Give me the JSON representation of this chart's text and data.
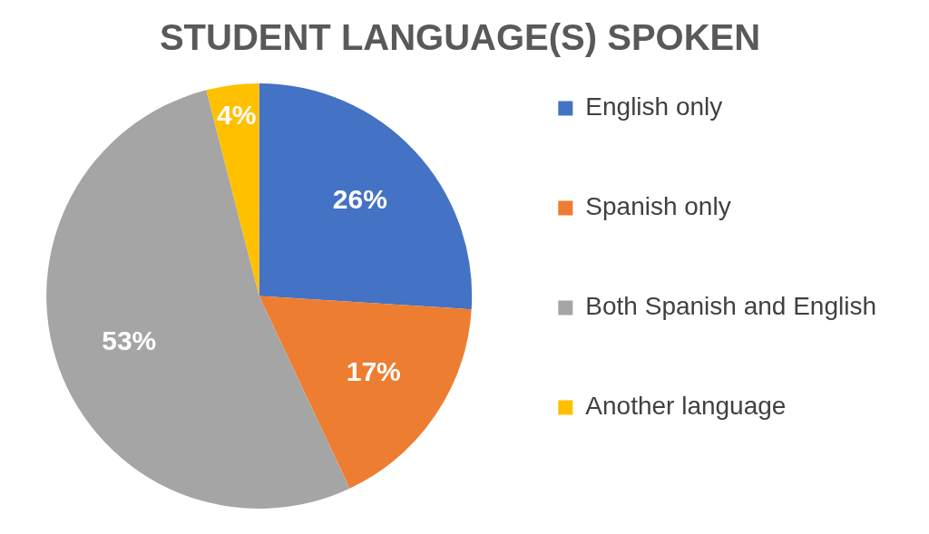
{
  "chart_data": {
    "type": "pie",
    "title": "STUDENT LANGUAGE(S) SPOKEN",
    "categories": [
      "English only",
      "Spanish only",
      "Both Spanish and English",
      "Another language"
    ],
    "values": [
      26,
      17,
      53,
      4
    ],
    "colors": [
      "#4472c4",
      "#ed7d31",
      "#a5a5a5",
      "#ffc000"
    ],
    "value_labels": [
      "26%",
      "17%",
      "53%",
      "4%"
    ],
    "legend": "right"
  }
}
